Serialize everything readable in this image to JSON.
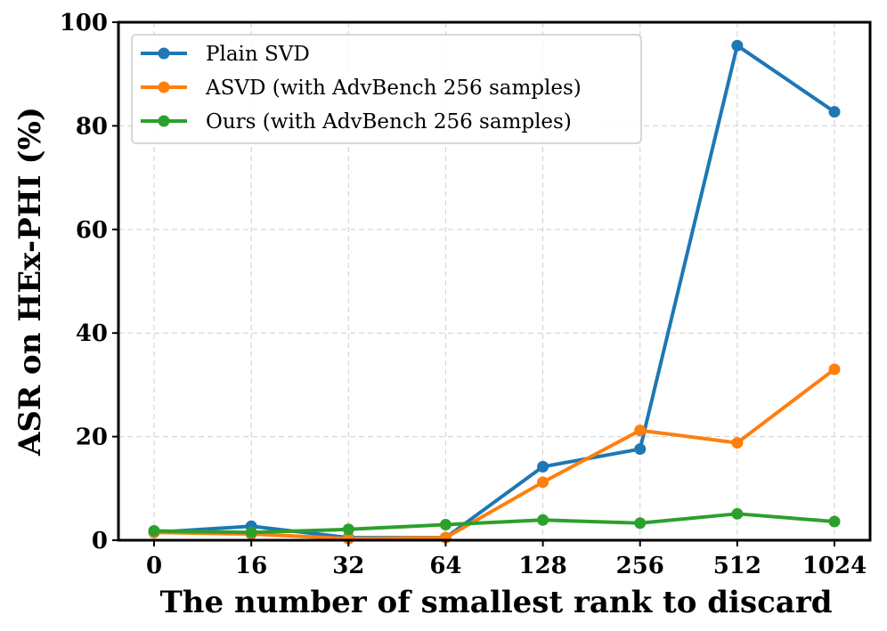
{
  "chart_data": {
    "type": "line",
    "title": "",
    "xlabel": "The number of smallest rank to discard",
    "ylabel": "ASR on HEx-PHI (%)",
    "categories": [
      "0",
      "16",
      "32",
      "64",
      "128",
      "256",
      "512",
      "1024"
    ],
    "ylim": [
      0,
      100
    ],
    "yticks": [
      0,
      20,
      40,
      60,
      80,
      100
    ],
    "grid": true,
    "legend_position": "top-left",
    "series": [
      {
        "name": "Plain SVD",
        "color": "#1f77b4",
        "values": [
          1.5,
          2.7,
          0.5,
          0.5,
          14.2,
          17.6,
          95.5,
          82.7
        ]
      },
      {
        "name": "ASVD (with AdvBench 256 samples)",
        "color": "#ff7f0e",
        "values": [
          1.5,
          1.2,
          0.3,
          0.5,
          11.2,
          21.2,
          18.8,
          33.0
        ]
      },
      {
        "name": "Ours (with AdvBench 256 samples)",
        "color": "#2ca02c",
        "values": [
          1.8,
          1.5,
          2.1,
          3.0,
          3.9,
          3.3,
          5.1,
          3.6
        ]
      }
    ]
  }
}
